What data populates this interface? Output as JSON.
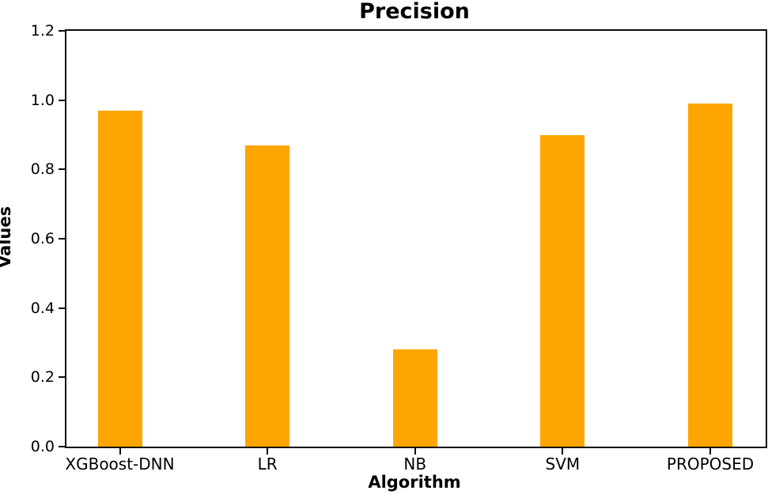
{
  "chart_data": {
    "type": "bar",
    "title": "Precision",
    "xlabel": "Algorithm",
    "ylabel": "Values",
    "categories": [
      "XGBoost-DNN",
      "LR",
      "NB",
      "SVM",
      "PROPOSED"
    ],
    "values": [
      0.97,
      0.87,
      0.28,
      0.9,
      0.99
    ],
    "bar_color": "#FFA500",
    "ylim": [
      0,
      1.2
    ],
    "yticks": [
      0.0,
      0.2,
      0.4,
      0.6,
      0.8,
      1.0,
      1.2
    ],
    "ytick_labels": [
      "0.0",
      "0.2",
      "0.4",
      "0.6",
      "0.8",
      "1.0",
      "1.2"
    ],
    "grid": false,
    "legend_position": "none",
    "frame": "full-box",
    "axis_color": "#0a0a0a"
  }
}
